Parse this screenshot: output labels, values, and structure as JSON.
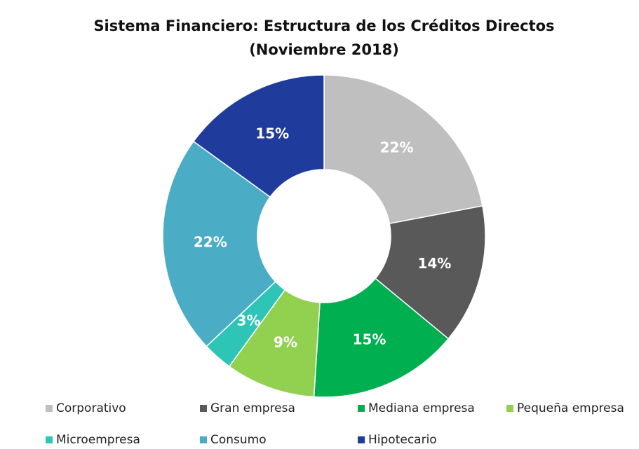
{
  "chart_data": {
    "type": "donut",
    "title": "Sistema Financiero: Estructura de los Créditos Directos",
    "subtitle": "(Noviembre 2018)",
    "categories": [
      "Corporativo",
      "Gran empresa",
      "Mediana empresa",
      "Pequeña empresa",
      "Microempresa",
      "Consumo",
      "Hipotecario"
    ],
    "values": [
      22,
      14,
      15,
      9,
      3,
      22,
      15
    ],
    "value_labels": [
      "22%",
      "14%",
      "15%",
      "9%",
      "3%",
      "22%",
      "15%"
    ],
    "colors": [
      "#bfbfbf",
      "#595959",
      "#00b050",
      "#92d050",
      "#2ec4b6",
      "#4bacc6",
      "#1f3c9c"
    ],
    "legend": "bottom"
  }
}
